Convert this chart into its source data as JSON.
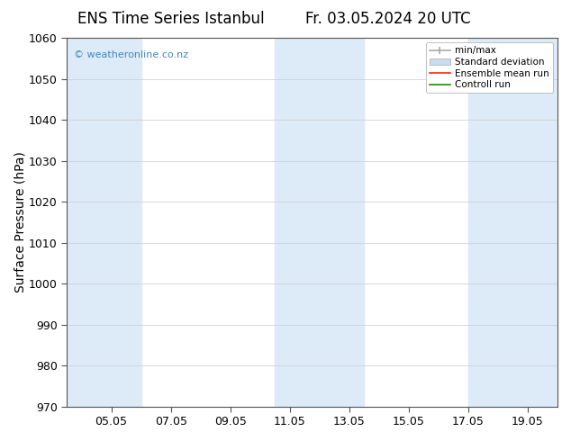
{
  "title": "ENS Time Series Istanbul",
  "title2": "Fr. 03.05.2024 20 UTC",
  "ylabel": "Surface Pressure (hPa)",
  "ylim": [
    970,
    1060
  ],
  "yticks": [
    970,
    980,
    990,
    1000,
    1010,
    1020,
    1030,
    1040,
    1050,
    1060
  ],
  "x_labels": [
    "05.05",
    "07.05",
    "09.05",
    "11.05",
    "13.05",
    "15.05",
    "17.05",
    "19.05"
  ],
  "x_tick_pos": [
    5,
    7,
    9,
    11,
    13,
    15,
    17,
    19
  ],
  "xlim": [
    3.5,
    20.0
  ],
  "shaded_bands": [
    {
      "x_start": 3.5,
      "x_end": 6.0
    },
    {
      "x_start": 10.5,
      "x_end": 13.5
    },
    {
      "x_start": 17.0,
      "x_end": 20.0
    }
  ],
  "band_color": "#ddeaf8",
  "background_color": "#ffffff",
  "watermark_text": "© weatheronline.co.nz",
  "watermark_color": "#4488bb",
  "legend_labels": [
    "min/max",
    "Standard deviation",
    "Ensemble mean run",
    "Controll run"
  ],
  "legend_colors_line": [
    "#999999",
    "#b8cedf",
    "#ff0000",
    "#00aa00"
  ],
  "grid_color": "#cccccc",
  "title_fontsize": 12,
  "tick_fontsize": 9,
  "ylabel_fontsize": 10
}
